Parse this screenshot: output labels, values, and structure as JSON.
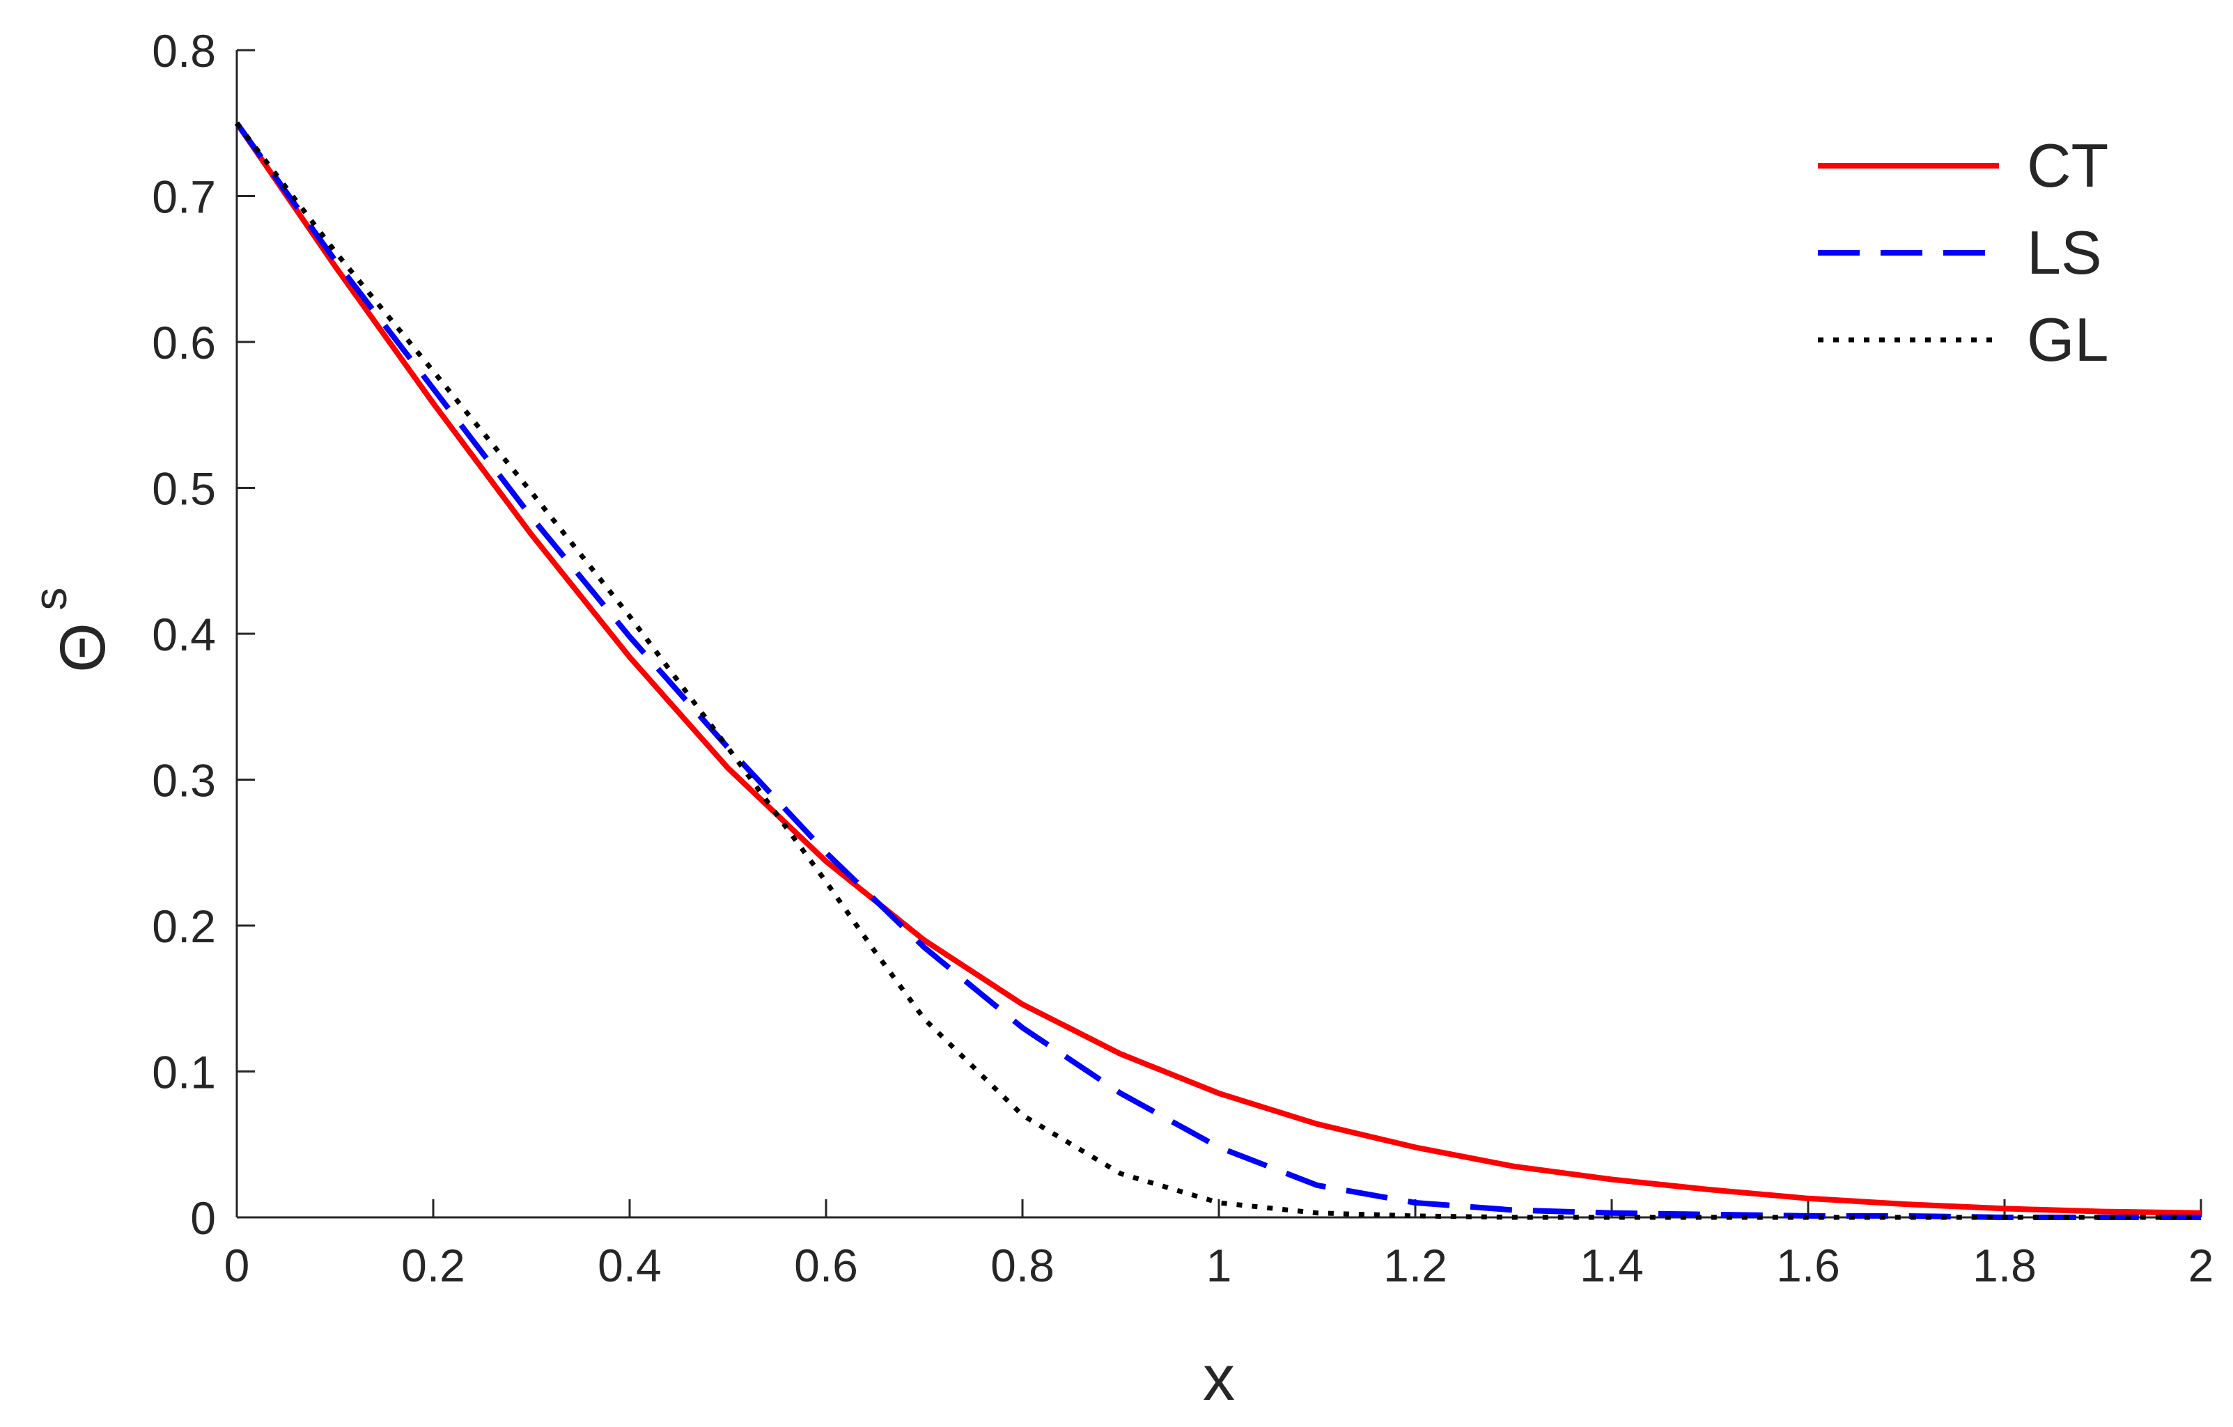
{
  "chart_data": {
    "type": "line",
    "xlabel": "x",
    "ylabel": "Θ",
    "ylabel_superscript": "s",
    "xlim": [
      0,
      2
    ],
    "ylim": [
      0,
      0.8
    ],
    "grid": false,
    "legend_position": "top-right",
    "x_ticks": [
      "0",
      "0.2",
      "0.4",
      "0.6",
      "0.8",
      "1",
      "1.2",
      "1.4",
      "1.6",
      "1.8",
      "2"
    ],
    "y_ticks": [
      "0",
      "0.1",
      "0.2",
      "0.3",
      "0.4",
      "0.5",
      "0.6",
      "0.7",
      "0.8"
    ],
    "series": [
      {
        "name": "CT",
        "color": "#ff0000",
        "style": "solid",
        "x": [
          0,
          0.1,
          0.2,
          0.3,
          0.4,
          0.5,
          0.6,
          0.7,
          0.8,
          0.9,
          1.0,
          1.1,
          1.2,
          1.3,
          1.4,
          1.5,
          1.6,
          1.7,
          1.8,
          1.9,
          2.0
        ],
        "y": [
          0.75,
          0.652,
          0.558,
          0.468,
          0.384,
          0.308,
          0.244,
          0.19,
          0.146,
          0.112,
          0.085,
          0.064,
          0.048,
          0.035,
          0.026,
          0.019,
          0.013,
          0.009,
          0.006,
          0.004,
          0.003
        ]
      },
      {
        "name": "LS",
        "color": "#0000ff",
        "style": "dashed",
        "x": [
          0,
          0.1,
          0.2,
          0.3,
          0.4,
          0.5,
          0.6,
          0.7,
          0.8,
          0.9,
          1.0,
          1.1,
          1.2,
          1.3,
          1.4,
          1.5,
          1.6,
          1.7,
          1.8,
          1.9,
          2.0
        ],
        "y": [
          0.75,
          0.656,
          0.568,
          0.48,
          0.398,
          0.322,
          0.25,
          0.185,
          0.13,
          0.085,
          0.048,
          0.022,
          0.01,
          0.005,
          0.003,
          0.002,
          0.001,
          0.001,
          0.0,
          0.0,
          0.0
        ]
      },
      {
        "name": "GL",
        "color": "#000000",
        "style": "dotted",
        "x": [
          0,
          0.1,
          0.2,
          0.3,
          0.4,
          0.5,
          0.55,
          0.6,
          0.65,
          0.7,
          0.8,
          0.9,
          1.0,
          1.1,
          1.2,
          1.3,
          1.4,
          1.6,
          1.8,
          2.0
        ],
        "y": [
          0.75,
          0.662,
          0.58,
          0.497,
          0.412,
          0.322,
          0.276,
          0.23,
          0.182,
          0.136,
          0.07,
          0.03,
          0.01,
          0.003,
          0.001,
          0.0,
          0.0,
          0.0,
          0.0,
          0.0
        ]
      }
    ]
  }
}
